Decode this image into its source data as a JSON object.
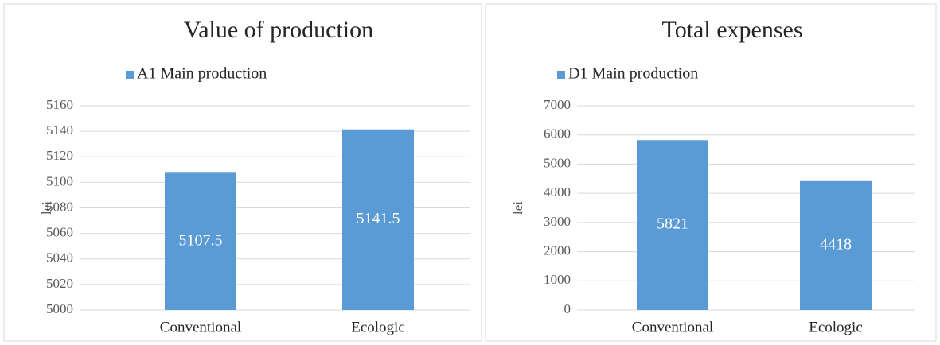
{
  "chart_data": [
    {
      "type": "bar",
      "title": "Value of production",
      "y_label": "lei",
      "categories": [
        "Conventional",
        "Ecologic"
      ],
      "series": [
        {
          "name": "A1 Main production",
          "color": "#5b9bd5",
          "values": [
            5107.5,
            5141.5
          ]
        }
      ],
      "ylim": [
        5000,
        5160
      ],
      "yticks": [
        5000,
        5020,
        5040,
        5060,
        5080,
        5100,
        5120,
        5140,
        5160
      ],
      "grid": true,
      "legend": "top-left"
    },
    {
      "type": "bar",
      "title": "Total expenses",
      "y_label": "lei",
      "categories": [
        "Conventional",
        "Ecologic"
      ],
      "series": [
        {
          "name": "D1 Main production",
          "color": "#5b9bd5",
          "values": [
            5821,
            4418
          ]
        }
      ],
      "ylim": [
        0,
        7000
      ],
      "yticks": [
        0,
        1000,
        2000,
        3000,
        4000,
        5000,
        6000,
        7000
      ],
      "grid": true,
      "legend": "top-left"
    }
  ]
}
